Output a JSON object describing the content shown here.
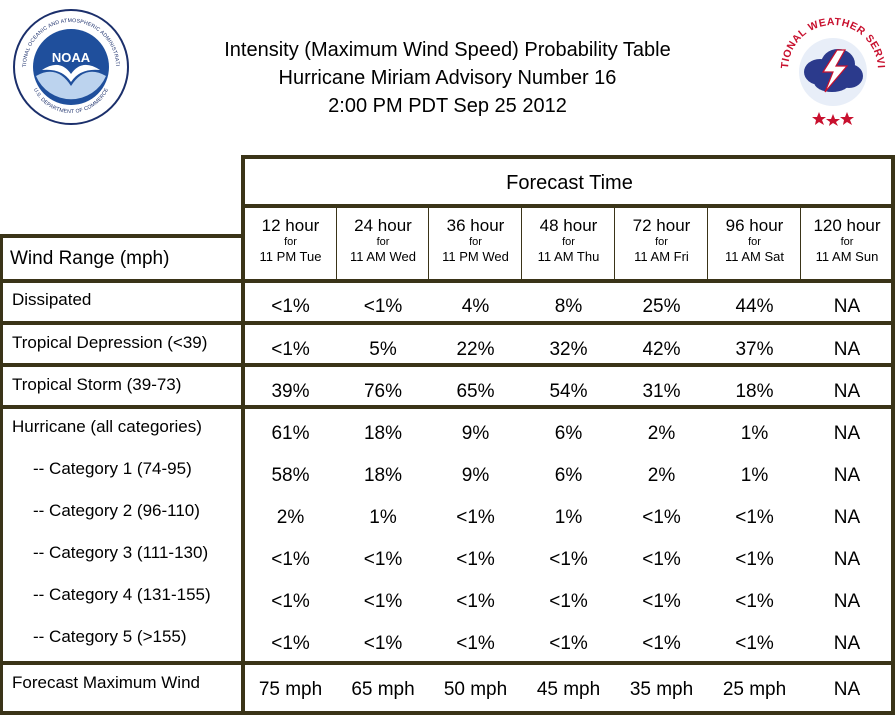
{
  "header": {
    "title_line1": "Intensity (Maximum Wind Speed) Probability Table",
    "title_line2": "Hurricane Miriam Advisory Number 16",
    "title_line3": "2:00 PM PDT Sep 25 2012",
    "left_logo": {
      "icon": "noaa-logo",
      "ring_text": "NATIONAL OCEANIC AND ATMOSPHERIC ADMINISTRATION",
      "bottom_text": "U.S. DEPARTMENT OF COMMERCE",
      "center_text": "NOAA"
    },
    "right_logo": {
      "icon": "nws-logo",
      "ring_text": "NATIONAL WEATHER SERVICE"
    }
  },
  "table": {
    "forecast_time_label": "Forecast Time",
    "wind_range_label": "Wind Range (mph)",
    "columns": [
      {
        "hours": "12 hour",
        "for": "for",
        "when": "11 PM Tue"
      },
      {
        "hours": "24 hour",
        "for": "for",
        "when": "11 AM Wed"
      },
      {
        "hours": "36 hour",
        "for": "for",
        "when": "11 PM Wed"
      },
      {
        "hours": "48 hour",
        "for": "for",
        "when": "11 AM Thu"
      },
      {
        "hours": "72 hour",
        "for": "for",
        "when": "11 AM Fri"
      },
      {
        "hours": "96 hour",
        "for": "for",
        "when": "11 AM Sat"
      },
      {
        "hours": "120 hour",
        "for": "for",
        "when": "11 AM Sun"
      }
    ],
    "rows": [
      {
        "label": "Dissipated",
        "values": [
          "<1%",
          "<1%",
          "4%",
          "8%",
          "25%",
          "44%",
          "NA"
        ]
      },
      {
        "label": "Tropical Depression (<39)",
        "values": [
          "<1%",
          "5%",
          "22%",
          "32%",
          "42%",
          "37%",
          "NA"
        ]
      },
      {
        "label": "Tropical Storm (39-73)",
        "values": [
          "39%",
          "76%",
          "65%",
          "54%",
          "31%",
          "18%",
          "NA"
        ]
      },
      {
        "label": "Hurricane (all categories)",
        "values": [
          "61%",
          "18%",
          "9%",
          "6%",
          "2%",
          "1%",
          "NA"
        ]
      },
      {
        "label": "-- Category 1 (74-95)",
        "values": [
          "58%",
          "18%",
          "9%",
          "6%",
          "2%",
          "1%",
          "NA"
        ]
      },
      {
        "label": "-- Category 2 (96-110)",
        "values": [
          "2%",
          "1%",
          "<1%",
          "1%",
          "<1%",
          "<1%",
          "NA"
        ]
      },
      {
        "label": "-- Category 3 (111-130)",
        "values": [
          "<1%",
          "<1%",
          "<1%",
          "<1%",
          "<1%",
          "<1%",
          "NA"
        ]
      },
      {
        "label": "-- Category 4 (131-155)",
        "values": [
          "<1%",
          "<1%",
          "<1%",
          "<1%",
          "<1%",
          "<1%",
          "NA"
        ]
      },
      {
        "label": "-- Category 5 (>155)",
        "values": [
          "<1%",
          "<1%",
          "<1%",
          "<1%",
          "<1%",
          "<1%",
          "NA"
        ]
      },
      {
        "label": "Forecast Maximum Wind",
        "values": [
          "75 mph",
          "65 mph",
          "50 mph",
          "45 mph",
          "35 mph",
          "25 mph",
          "NA"
        ]
      }
    ]
  },
  "colors": {
    "frame": "#3a3418",
    "noaa_blue": "#1f4f9c",
    "nws_red": "#c8102e",
    "nws_navy": "#2b3a8c"
  }
}
